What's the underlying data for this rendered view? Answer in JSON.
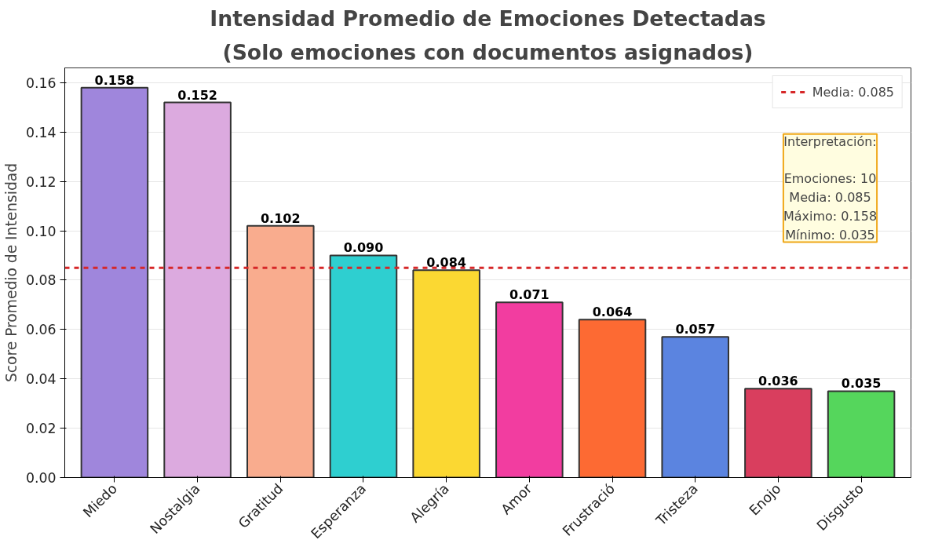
{
  "chart_data": {
    "type": "bar",
    "title": "Intensidad Promedio de Emociones Detectadas",
    "subtitle": "(Solo emociones con documentos asignados)",
    "ylabel": "Score Promedio de Intensidad",
    "categories": [
      "Miedo",
      "Nostalgia",
      "Gratitud",
      "Esperanza",
      "Alegría",
      "Amor",
      "Frustració",
      "Tristeza",
      "Enojo",
      "Disgusto"
    ],
    "values": [
      0.158,
      0.152,
      0.102,
      0.09,
      0.084,
      0.071,
      0.064,
      0.057,
      0.036,
      0.035
    ],
    "colors": [
      "#9f86dc",
      "#dcaadf",
      "#f9ac8e",
      "#2ecfd0",
      "#fbd832",
      "#f23da0",
      "#fd6a33",
      "#5b84e0",
      "#d93e5e",
      "#55d65c"
    ],
    "value_labels": [
      "0.158",
      "0.152",
      "0.102",
      "0.090",
      "0.084",
      "0.071",
      "0.064",
      "0.057",
      "0.036",
      "0.035"
    ],
    "ylim": [
      0,
      0.166
    ],
    "yticks": [
      {
        "value": 0,
        "label": "0.00"
      },
      {
        "value": 0.02,
        "label": "0.02"
      },
      {
        "value": 0.04,
        "label": "0.04"
      },
      {
        "value": 0.06,
        "label": "0.06"
      },
      {
        "value": 0.08,
        "label": "0.08"
      },
      {
        "value": 0.1,
        "label": "0.10"
      },
      {
        "value": 0.12,
        "label": "0.12"
      },
      {
        "value": 0.14,
        "label": "0.14"
      },
      {
        "value": 0.16,
        "label": "0.16"
      }
    ],
    "ref_lines": [
      {
        "axis": "y",
        "value": 0.085,
        "label": "Media: 0.085",
        "color": "#d62728",
        "line_style": "dashed"
      }
    ],
    "annotations": [
      "Interpretación:\n\nEmociones: 10\nMedia: 0.085\nMáximo: 0.158\nMínimo: 0.035"
    ],
    "grid": "y",
    "legend": "top right"
  }
}
